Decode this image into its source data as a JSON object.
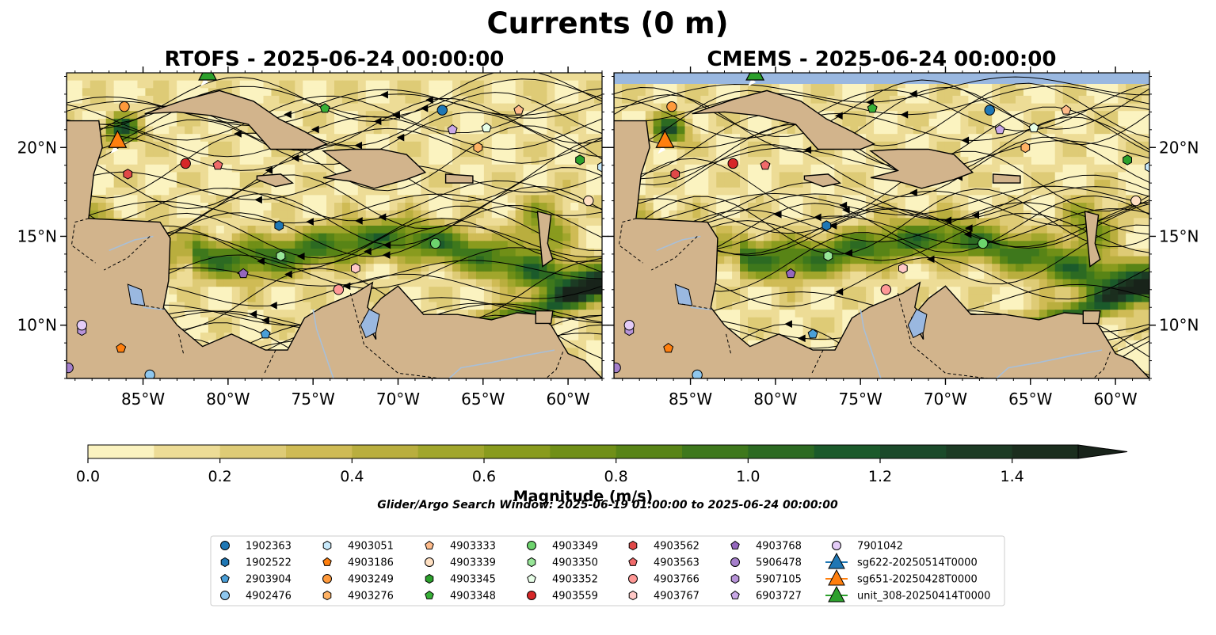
{
  "figure": {
    "title": "Currents (0 m)",
    "search_window": "Glider/Argo Search Window: 2025-06-19 01:00:00 to 2025-06-24 00:00:00"
  },
  "panels": [
    {
      "title": "RTOFS - 2025-06-24 00:00:00",
      "lat_ticks_side": "left"
    },
    {
      "title": "CMEMS - 2025-06-24 00:00:00",
      "lat_ticks_side": "right"
    }
  ],
  "colors": {
    "land": "#d2b48c",
    "lake": "#9ab8e0",
    "coast": "#000000",
    "river": "#a8bfd8",
    "colormap": [
      "#fbf3c0",
      "#eddc96",
      "#decb76",
      "#cfbb55",
      "#b9ae3e",
      "#a1a62c",
      "#899b1e",
      "#708f17",
      "#588416",
      "#3e781c",
      "#2c6a22",
      "#1b5a2b",
      "#1b4a2a",
      "#1c3b24",
      "#1b2e1e",
      "#18231a"
    ]
  },
  "chart_data": {
    "type": "heatmap",
    "subtype": "ocean surface current magnitude with streamlines and float/glider positions",
    "x_axis": {
      "ticks": [
        "85°W",
        "80°W",
        "75°W",
        "70°W",
        "65°W",
        "60°W"
      ],
      "tick_values": [
        -85,
        -80,
        -75,
        -70,
        -65,
        -60
      ],
      "range": [
        -89.5,
        -58.0
      ]
    },
    "y_axis": {
      "ticks": [
        "10°N",
        "15°N",
        "20°N"
      ],
      "tick_values": [
        10,
        15,
        20
      ],
      "range": [
        7.0,
        24.2
      ]
    },
    "colorbar": {
      "label": "Magnitude (m/s)",
      "range": [
        0.0,
        1.5
      ],
      "step": 0.1,
      "ticks": [
        "0.0",
        "0.2",
        "0.4",
        "0.6",
        "0.8",
        "1.0",
        "1.2",
        "1.4"
      ],
      "tick_values": [
        0.0,
        0.2,
        0.4,
        0.6,
        0.8,
        1.0,
        1.2,
        1.4
      ],
      "extend": "max"
    },
    "floats": [
      {
        "name": "1902363",
        "marker": "circle",
        "color": "#1f77b4",
        "lon": -67.4,
        "lat": 22.1
      },
      {
        "name": "1902522",
        "marker": "hexagon",
        "color": "#1f77b4",
        "lon": -77.0,
        "lat": 15.6
      },
      {
        "name": "2903904",
        "marker": "pentagon",
        "color": "#4a9fd8",
        "lon": -77.8,
        "lat": 9.5
      },
      {
        "name": "4902476",
        "marker": "circle",
        "color": "#8fc7ee",
        "lon": -84.6,
        "lat": 7.2
      },
      {
        "name": "4903051",
        "marker": "hexagon",
        "color": "#c8e9fb",
        "lon": -58.0,
        "lat": 18.9
      },
      {
        "name": "4903186",
        "marker": "pentagon",
        "color": "#ff7f0e",
        "lon": -86.3,
        "lat": 8.7
      },
      {
        "name": "4903249",
        "marker": "circle",
        "color": "#ff9a3c",
        "lon": -86.1,
        "lat": 22.3
      },
      {
        "name": "4903276",
        "marker": "hexagon",
        "color": "#ffb264",
        "lon": -65.3,
        "lat": 20.0
      },
      {
        "name": "4903333",
        "marker": "pentagon",
        "color": "#ffbb8a",
        "lon": -62.9,
        "lat": 22.1
      },
      {
        "name": "4903339",
        "marker": "circle",
        "color": "#ffe0c2",
        "lon": -58.8,
        "lat": 17.0
      },
      {
        "name": "4903345",
        "marker": "hexagon",
        "color": "#2ca02c",
        "lon": -59.3,
        "lat": 19.3
      },
      {
        "name": "4903348",
        "marker": "pentagon",
        "color": "#37b037",
        "lon": -74.3,
        "lat": 22.2
      },
      {
        "name": "4903349",
        "marker": "circle",
        "color": "#6dd36d",
        "lon": -67.8,
        "lat": 14.6
      },
      {
        "name": "4903350",
        "marker": "hexagon",
        "color": "#98e698",
        "lon": -76.9,
        "lat": 13.9
      },
      {
        "name": "4903352",
        "marker": "pentagon",
        "color": "#e8ffe8",
        "lon": -64.8,
        "lat": 21.1
      },
      {
        "name": "4903559",
        "marker": "circle",
        "color": "#d62728",
        "lon": -82.5,
        "lat": 19.1
      },
      {
        "name": "4903562",
        "marker": "hexagon",
        "color": "#e04848",
        "lon": -85.9,
        "lat": 18.5
      },
      {
        "name": "4903563",
        "marker": "pentagon",
        "color": "#f06a6a",
        "lon": -80.6,
        "lat": 19.0
      },
      {
        "name": "4903766",
        "marker": "circle",
        "color": "#ff9896",
        "lon": -73.5,
        "lat": 12.0
      },
      {
        "name": "4903767",
        "marker": "hexagon",
        "color": "#ffc8c6",
        "lon": -72.5,
        "lat": 13.2
      },
      {
        "name": "4903768",
        "marker": "pentagon",
        "color": "#9467bd",
        "lon": -79.1,
        "lat": 12.9
      },
      {
        "name": "5906478",
        "marker": "circle",
        "color": "#a57fcb",
        "lon": -89.4,
        "lat": 7.6
      },
      {
        "name": "5907105",
        "marker": "hexagon",
        "color": "#b894d9",
        "lon": -88.6,
        "lat": 9.7
      },
      {
        "name": "6903727",
        "marker": "pentagon",
        "color": "#c9a8e6",
        "lon": -66.8,
        "lat": 21.0
      },
      {
        "name": "7901042",
        "marker": "circle",
        "color": "#e4ccf7",
        "lon": -88.6,
        "lat": 10.0
      }
    ],
    "gliders": [
      {
        "name": "sg622-20250514T0000",
        "color": "#1f77b4",
        "lon": null,
        "lat": null
      },
      {
        "name": "sg651-20250428T0000",
        "color": "#ff7f0e",
        "lon": -86.5,
        "lat": 20.4
      },
      {
        "name": "unit_308-20250414T0000",
        "color": "#2ca02c",
        "lon": -81.2,
        "lat": 24.2
      }
    ]
  },
  "legend": {
    "columns": 7
  }
}
